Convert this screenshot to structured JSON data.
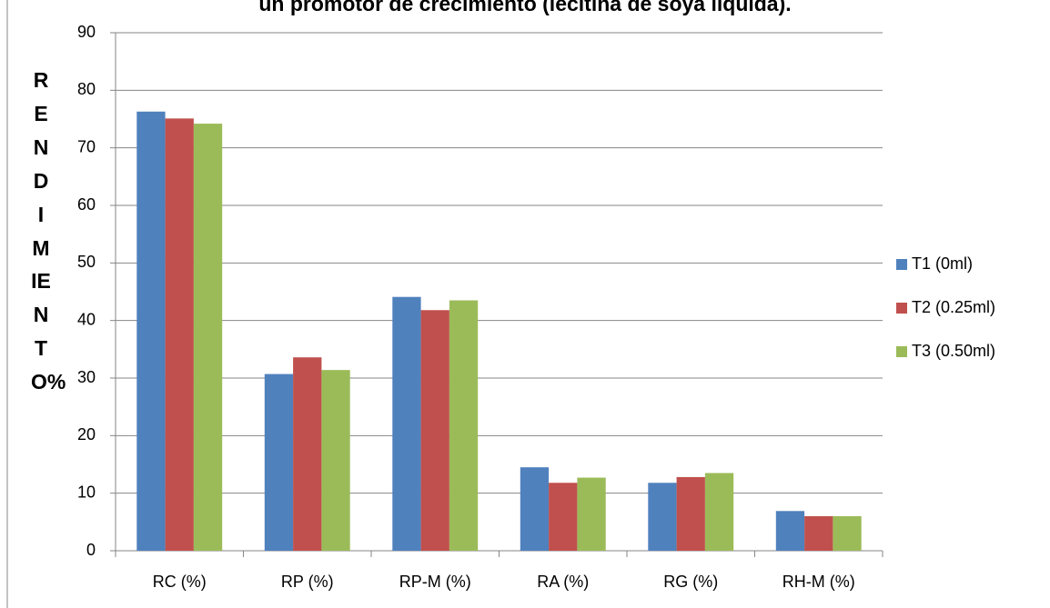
{
  "chart_data": {
    "type": "bar",
    "title": "un promotor de crecimiento (lecitina de soya líquida).",
    "y_label": "RENDIMIENTO%",
    "categories": [
      "RC (%)",
      "RP (%)",
      "RP-M (%)",
      "RA (%)",
      "RG (%)",
      "RH-M (%)"
    ],
    "series": [
      {
        "name": "T1 (0ml)",
        "color": "#4f81bd",
        "values": [
          76.3,
          30.7,
          44.1,
          14.5,
          11.8,
          6.9
        ]
      },
      {
        "name": "T2 (0.25ml)",
        "color": "#c0504d",
        "values": [
          75.1,
          33.6,
          41.8,
          11.8,
          12.8,
          6.0
        ]
      },
      {
        "name": "T3 (0.50ml)",
        "color": "#9bbb59",
        "values": [
          74.2,
          31.4,
          43.5,
          12.7,
          13.5,
          6.0
        ]
      }
    ],
    "ylim": [
      0,
      90
    ],
    "yticks": [
      0,
      10,
      20,
      30,
      40,
      50,
      60,
      70,
      80,
      90
    ],
    "grid": true,
    "legend": "right"
  }
}
